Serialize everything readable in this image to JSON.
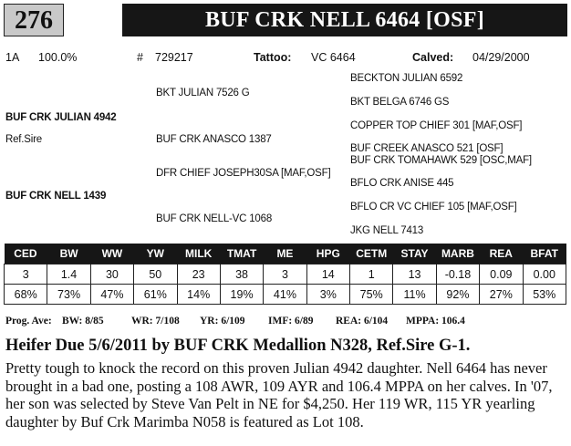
{
  "lot_number": "276",
  "animal_name": "BUF CRK NELL 6464 [OSF]",
  "info": {
    "grade": "1A",
    "percent": "100.0%",
    "reg_label": "#",
    "reg_number": "729217",
    "tattoo_label": "Tattoo:",
    "tattoo": "VC 6464",
    "calved_label": "Calved:",
    "calved": "04/29/2000"
  },
  "pedigree": {
    "sire": "BUF CRK JULIAN 4942",
    "ref_sire": "Ref.Sire",
    "dam": "BUF CRK NELL 1439",
    "sire_sire": "BKT JULIAN 7526 G",
    "sire_dam": "BUF CRK ANASCO 1387",
    "dam_sire": "DFR CHIEF JOSEPH30SA [MAF,OSF]",
    "dam_dam": "BUF CRK NELL-VC 1068",
    "ss_sire": "BECKTON JULIAN 6592",
    "ss_dam": "BKT BELGA 6746 GS",
    "sd_sire": "COPPER TOP CHIEF 301 [MAF,OSF]",
    "sd_dam": "BUF CREEK ANASCO 521 [OSF]",
    "ds_sire": "BUF CRK TOMAHAWK 529 [OSC,MAF]",
    "ds_dam": "BFLO CRK ANISE 445",
    "dd_sire": "BFLO CR VC CHIEF 105 [MAF,OSF]",
    "dd_dam": "JKG NELL 7413"
  },
  "epd": {
    "headers": [
      "CED",
      "BW",
      "WW",
      "YW",
      "MILK",
      "TMAT",
      "ME",
      "HPG",
      "CETM",
      "STAY",
      "MARB",
      "REA",
      "BFAT"
    ],
    "values": [
      "3",
      "1.4",
      "30",
      "50",
      "23",
      "38",
      "3",
      "14",
      "1",
      "13",
      "-0.18",
      "0.09",
      "0.00"
    ],
    "percentiles": [
      "68%",
      "73%",
      "47%",
      "61%",
      "14%",
      "19%",
      "41%",
      "3%",
      "75%",
      "11%",
      "92%",
      "27%",
      "53%"
    ]
  },
  "progeny": {
    "label": "Prog. Ave:",
    "bw": "BW: 8/85",
    "wr": "WR: 7/108",
    "yr": "YR: 6/109",
    "imf": "IMF: 6/89",
    "rea": "REA: 6/104",
    "mppa": "MPPA: 106.4"
  },
  "headline": "Heifer Due 5/6/2011 by BUF CRK Medallion N328, Ref.Sire G-1.",
  "description": "Pretty tough to knock the record on this proven Julian 4942 daughter.  Nell 6464 has never brought in a bad one, posting a 108 AWR, 109 AYR and 106.4 MPPA on her calves.  In '07, her son was selected by Steve Van Pelt in NE for $4,250.  Her 119 WR, 115 YR yearling daughter by Buf Crk Marimba N058 is featured as Lot 108."
}
